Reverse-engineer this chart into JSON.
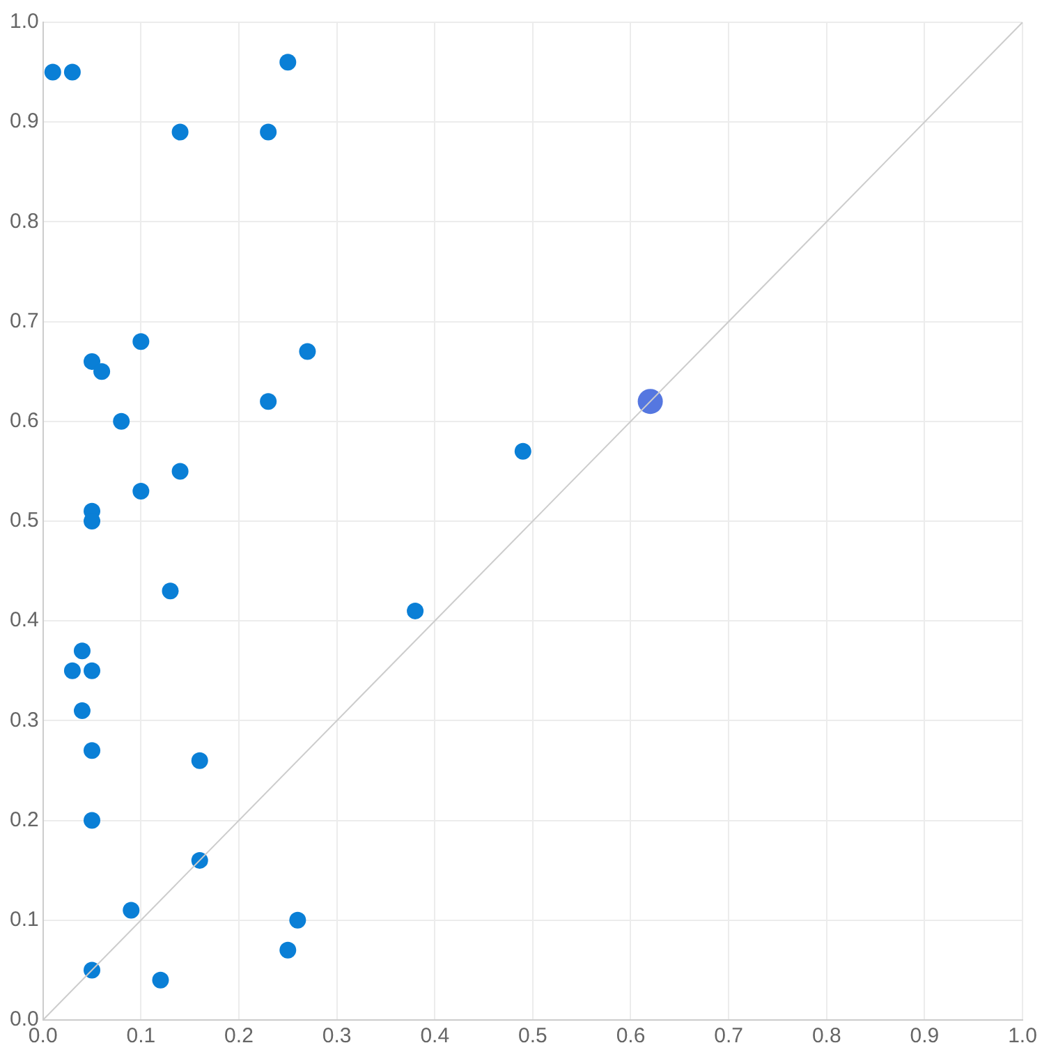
{
  "chart_data": {
    "type": "scatter",
    "grid": true,
    "legend": false,
    "marker": "circle",
    "xlim": [
      0,
      1
    ],
    "ylim": [
      0,
      1
    ],
    "xticks": [
      {
        "value": 0,
        "label": "0.0"
      },
      {
        "value": 0.1,
        "label": "0.1"
      },
      {
        "value": 0.2,
        "label": "0.2"
      },
      {
        "value": 0.3,
        "label": "0.3"
      },
      {
        "value": 0.4,
        "label": "0.4"
      },
      {
        "value": 0.5,
        "label": "0.5"
      },
      {
        "value": 0.6,
        "label": "0.6"
      },
      {
        "value": 0.7,
        "label": "0.7"
      },
      {
        "value": 0.8,
        "label": "0.8"
      },
      {
        "value": 0.9,
        "label": "0.9"
      },
      {
        "value": 1,
        "label": "1.0"
      }
    ],
    "yticks": [
      {
        "value": 0,
        "label": "0.0"
      },
      {
        "value": 0.1,
        "label": "0.1"
      },
      {
        "value": 0.2,
        "label": "0.2"
      },
      {
        "value": 0.3,
        "label": "0.3"
      },
      {
        "value": 0.4,
        "label": "0.4"
      },
      {
        "value": 0.5,
        "label": "0.5"
      },
      {
        "value": 0.6,
        "label": "0.6"
      },
      {
        "value": 0.7,
        "label": "0.7"
      },
      {
        "value": 0.8,
        "label": "0.8"
      },
      {
        "value": 0.9,
        "label": "0.9"
      },
      {
        "value": 1,
        "label": "1.0"
      }
    ],
    "series": [
      {
        "type": "line",
        "color": "#cccccc",
        "marker": "none",
        "x": [
          0,
          1
        ],
        "values": [
          0,
          1
        ]
      },
      {
        "type": "scatter",
        "color": "#0a7fd6",
        "x": [
          0.01,
          0.03,
          0.25,
          0.14,
          0.23,
          0.1,
          0.05,
          0.06,
          0.27,
          0.23,
          0.08,
          0.14,
          0.49,
          0.1,
          0.05,
          0.05,
          0.13,
          0.38,
          0.04,
          0.03,
          0.05,
          0.04,
          0.05,
          0.16,
          0.05,
          0.16,
          0.09,
          0.26,
          0.25,
          0.05,
          0.12
        ],
        "values": [
          0.95,
          0.95,
          0.96,
          0.89,
          0.89,
          0.68,
          0.66,
          0.65,
          0.67,
          0.62,
          0.6,
          0.55,
          0.57,
          0.53,
          0.51,
          0.5,
          0.43,
          0.41,
          0.37,
          0.35,
          0.35,
          0.31,
          0.27,
          0.26,
          0.2,
          0.16,
          0.11,
          0.1,
          0.07,
          0.05,
          0.04
        ]
      },
      {
        "type": "scatter",
        "color": "#5577e0",
        "x": [
          0.62
        ],
        "values": [
          0.62
        ]
      }
    ]
  }
}
